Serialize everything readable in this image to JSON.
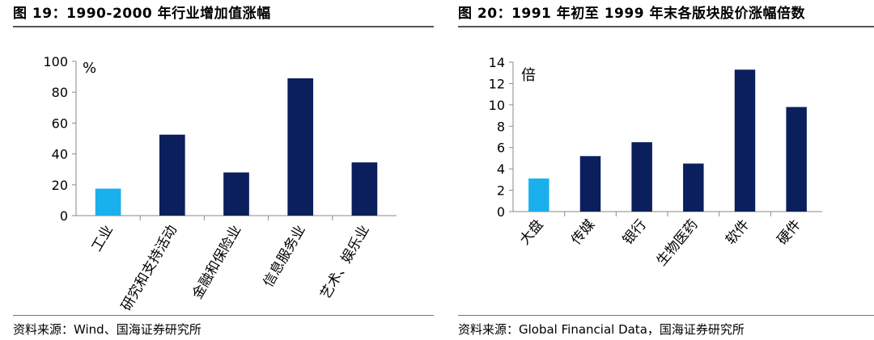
{
  "left": {
    "title": "图 19：1990-2000 年行业增加值涨幅",
    "source": "资料来源：Wind、国海证券研究所"
  },
  "right": {
    "title": "图 20：1991 年初至 1999 年末各版块股价涨幅倍数",
    "source": "资料来源：Global Financial Data，国海证券研究所"
  },
  "colors": {
    "highlight": "#1ab0ee",
    "bar": "#0a1f5c",
    "axis": "#8a8a8a"
  },
  "chart_data": [
    {
      "type": "bar",
      "unit": "%",
      "categories": [
        "工业",
        "研究和支持活动",
        "金融和保险业",
        "信息服务业",
        "艺术、娱乐业"
      ],
      "values": [
        17.5,
        52.5,
        28,
        89,
        34.5
      ],
      "highlight_index": 0,
      "ylim": [
        0,
        100
      ],
      "yticks": [
        0,
        20,
        40,
        60,
        80,
        100
      ],
      "grid": false,
      "legend": false
    },
    {
      "type": "bar",
      "unit": "倍",
      "categories": [
        "大盘",
        "传媒",
        "银行",
        "生物医药",
        "软件",
        "硬件"
      ],
      "values": [
        3.1,
        5.2,
        6.5,
        4.5,
        13.3,
        9.8
      ],
      "highlight_index": 0,
      "ylim": [
        0,
        14
      ],
      "yticks": [
        0,
        2,
        4,
        6,
        8,
        10,
        12,
        14
      ],
      "grid": false,
      "legend": false
    }
  ]
}
